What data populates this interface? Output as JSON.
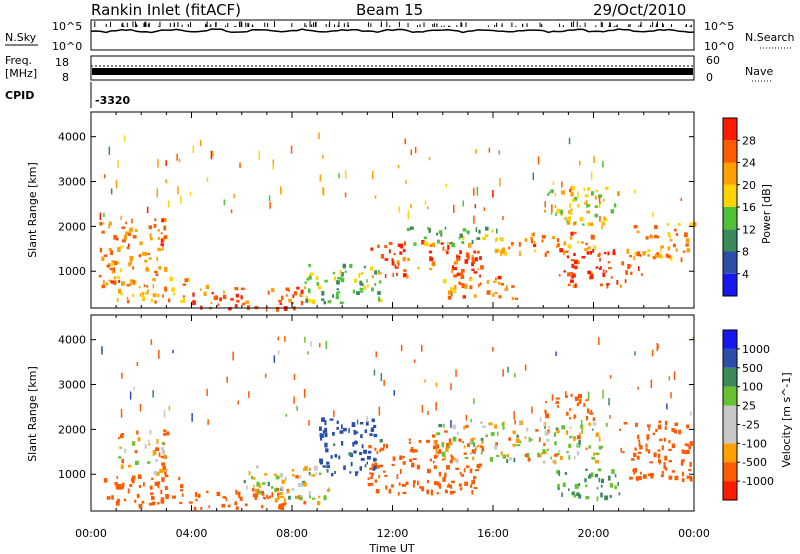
{
  "header": {
    "station": "Rankin Inlet (fitACF)",
    "beam": "Beam 15",
    "date": "29/Oct/2010"
  },
  "status_panels": {
    "nsky": {
      "label": "N.Sky",
      "ticks": [
        "10^5",
        "10^0"
      ]
    },
    "nsearch": {
      "label": "N.Search",
      "ticks": [
        "10^5",
        "10^0"
      ]
    },
    "freq": {
      "label_line1": "Freq.",
      "label_line2": "[MHz]",
      "ticks": [
        "18",
        "8"
      ]
    },
    "nave": {
      "label": "Nave",
      "ticks": [
        "60",
        "0"
      ]
    },
    "cpid": {
      "label": "CPID",
      "value": "-3320"
    }
  },
  "colors": {
    "power": [
      "#1818ee",
      "#2b4fa8",
      "#3b8a5a",
      "#4fc23a",
      "#ffd400",
      "#ff9f00",
      "#ff5a00",
      "#ff1a00"
    ],
    "velocity": [
      "#ff1a00",
      "#ff5a00",
      "#ff9f00",
      "#c8c8c8",
      "#c8c8c8",
      "#66c232",
      "#3b8a5a",
      "#2b4fa8",
      "#1818ee"
    ]
  },
  "chart_data": [
    {
      "type": "heatmap",
      "quantity": "power",
      "ylabel": "Slant Range [km]",
      "xlabel": "Time UT",
      "xlim": [
        0,
        24
      ],
      "ylim": [
        180,
        4550
      ],
      "xticks": [
        "00:00",
        "04:00",
        "08:00",
        "12:00",
        "16:00",
        "20:00",
        "00:00"
      ],
      "yticks": [
        1000,
        2000,
        3000,
        4000
      ],
      "colorbar": {
        "label": "Power [dB]",
        "ticks": [
          "4",
          "8",
          "12",
          "16",
          "20",
          "24",
          "28"
        ],
        "range": [
          0,
          32
        ]
      },
      "regions": [
        {
          "t": [
            0.3,
            3.0
          ],
          "r": [
            700,
            2200
          ],
          "level": 24
        },
        {
          "t": [
            1.0,
            4.0
          ],
          "r": [
            300,
            900
          ],
          "level": 22
        },
        {
          "t": [
            4.0,
            8.5
          ],
          "r": [
            200,
            700
          ],
          "level": 26
        },
        {
          "t": [
            8.5,
            11.5
          ],
          "r": [
            300,
            1200
          ],
          "level": 14
        },
        {
          "t": [
            11.0,
            15.5
          ],
          "r": [
            900,
            1700
          ],
          "level": 26
        },
        {
          "t": [
            12.5,
            16.5
          ],
          "r": [
            1600,
            2000
          ],
          "level": 14
        },
        {
          "t": [
            14.0,
            17.0
          ],
          "r": [
            400,
            900
          ],
          "level": 24
        },
        {
          "t": [
            16.0,
            20.0
          ],
          "r": [
            1400,
            1900
          ],
          "level": 24
        },
        {
          "t": [
            18.5,
            22.0
          ],
          "r": [
            700,
            1500
          ],
          "level": 28
        },
        {
          "t": [
            21.5,
            24.0
          ],
          "r": [
            1300,
            2100
          ],
          "level": 22
        },
        {
          "t": [
            18.0,
            21.0
          ],
          "r": [
            2000,
            2900
          ],
          "level": 18
        }
      ]
    },
    {
      "type": "heatmap",
      "quantity": "velocity",
      "ylabel": "Slant Range [km]",
      "xlabel": "Time UT",
      "xlim": [
        0,
        24
      ],
      "ylim": [
        180,
        4550
      ],
      "xticks": [
        "00:00",
        "04:00",
        "08:00",
        "12:00",
        "16:00",
        "20:00",
        "00:00"
      ],
      "yticks": [
        1000,
        2000,
        3000,
        4000
      ],
      "colorbar": {
        "label": "Velocity [m s^-1]",
        "ticks": [
          "1000",
          "500",
          "100",
          "25",
          "-25",
          "-100",
          "-500",
          "-1000"
        ]
      },
      "regions": [
        {
          "t": [
            0.5,
            4.0
          ],
          "r": [
            300,
            1000
          ],
          "level": -300
        },
        {
          "t": [
            1.0,
            3.0
          ],
          "r": [
            1000,
            2000
          ],
          "level": -80
        },
        {
          "t": [
            4.0,
            8.5
          ],
          "r": [
            250,
            700
          ],
          "level": -300
        },
        {
          "t": [
            6.0,
            9.5
          ],
          "r": [
            400,
            1200
          ],
          "level": 10
        },
        {
          "t": [
            9.0,
            11.5
          ],
          "r": [
            1000,
            2300
          ],
          "level": 600
        },
        {
          "t": [
            11.0,
            15.5
          ],
          "r": [
            600,
            1800
          ],
          "level": -300
        },
        {
          "t": [
            13.5,
            20.5
          ],
          "r": [
            1300,
            2200
          ],
          "level": 0
        },
        {
          "t": [
            18.5,
            21.0
          ],
          "r": [
            500,
            1200
          ],
          "level": 150
        },
        {
          "t": [
            21.0,
            24.0
          ],
          "r": [
            900,
            2200
          ],
          "level": -300
        },
        {
          "t": [
            18.0,
            20.0
          ],
          "r": [
            2200,
            2800
          ],
          "level": -300
        }
      ]
    }
  ]
}
